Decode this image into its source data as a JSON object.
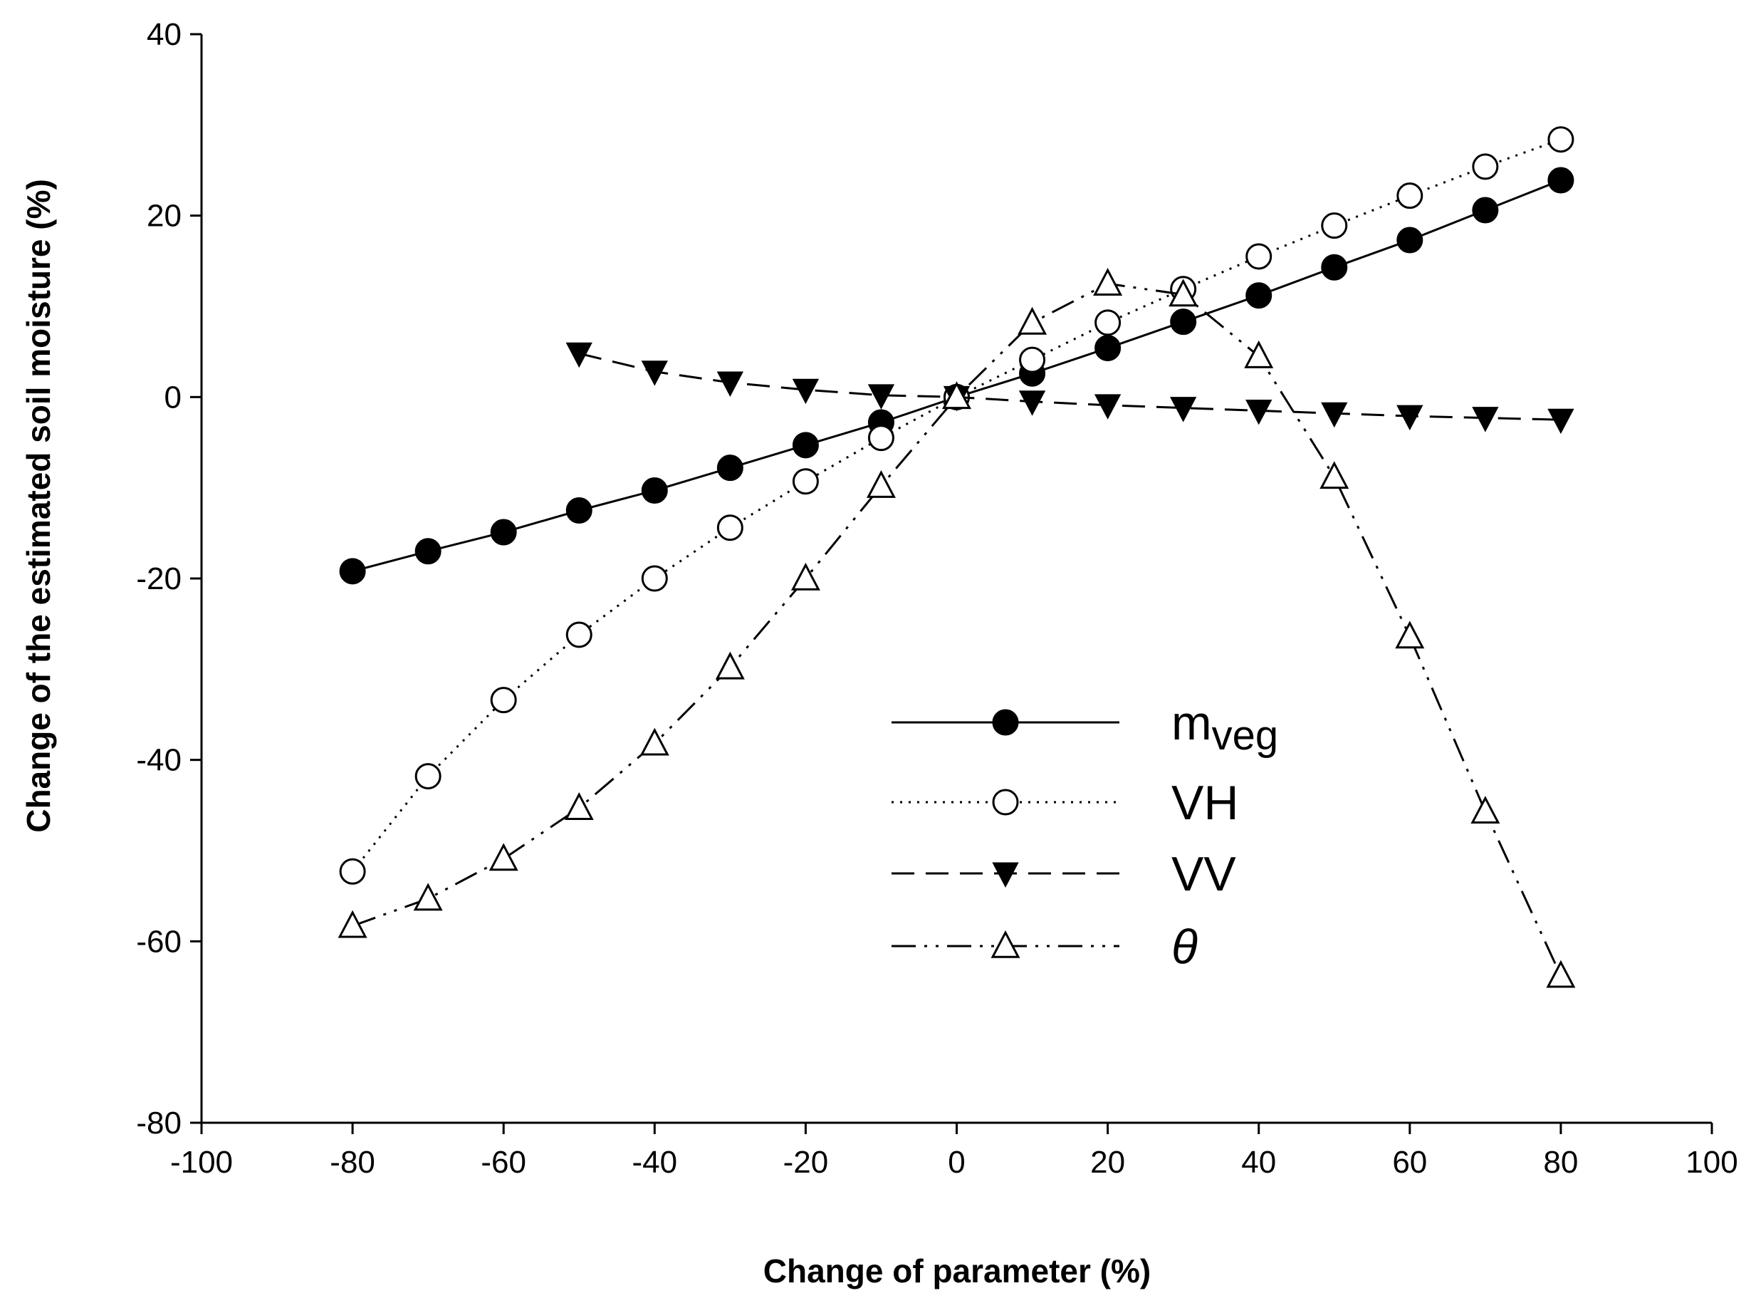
{
  "chart_data": {
    "type": "line",
    "title": "",
    "xlabel": "Change of parameter (%)",
    "ylabel": "Change of the estimated soil moisture (%)",
    "xlim": [
      -100,
      100
    ],
    "ylim": [
      -80,
      40
    ],
    "xticks": [
      -100,
      -80,
      -60,
      -40,
      -20,
      0,
      20,
      40,
      60,
      80,
      100
    ],
    "yticks": [
      -80,
      -60,
      -40,
      -20,
      0,
      20,
      40
    ],
    "grid": false,
    "legend_position": "lower-right",
    "series": [
      {
        "name": "mveg",
        "label_main": "m",
        "label_sub": "veg",
        "marker": "filled-circle",
        "line_style": "solid",
        "x": [
          -80,
          -70,
          -60,
          -50,
          -40,
          -30,
          -20,
          -10,
          0,
          10,
          20,
          30,
          40,
          50,
          60,
          70,
          80
        ],
        "y": [
          -19.2,
          -17,
          -14.9,
          -12.5,
          -10.3,
          -7.8,
          -5.3,
          -2.8,
          0,
          2.6,
          5.4,
          8.3,
          11.2,
          14.3,
          17.3,
          20.6,
          23.9
        ]
      },
      {
        "name": "VH",
        "label_main": "VH",
        "label_sub": "",
        "marker": "open-circle",
        "line_style": "dotted",
        "x": [
          -80,
          -70,
          -60,
          -50,
          -40,
          -30,
          -20,
          -10,
          0,
          10,
          20,
          30,
          40,
          50,
          60,
          70,
          80
        ],
        "y": [
          -52.3,
          -41.8,
          -33.4,
          -26.2,
          -20,
          -14.4,
          -9.3,
          -4.5,
          0,
          4.1,
          8.2,
          11.9,
          15.5,
          18.9,
          22.2,
          25.4,
          28.4
        ]
      },
      {
        "name": "VV",
        "label_main": "VV",
        "label_sub": "",
        "marker": "filled-triangle-down",
        "line_style": "dashed",
        "x": [
          -50,
          -40,
          -30,
          -20,
          -10,
          0,
          10,
          20,
          30,
          40,
          50,
          60,
          70,
          80
        ],
        "y": [
          4.8,
          2.8,
          1.6,
          0.8,
          0.2,
          0,
          -0.5,
          -0.9,
          -1.2,
          -1.5,
          -1.8,
          -2.1,
          -2.3,
          -2.5
        ]
      },
      {
        "name": "θ",
        "label_main": "θ",
        "label_sub": "",
        "marker": "open-triangle-up",
        "line_style": "dash-dot-dot",
        "x": [
          -80,
          -70,
          -60,
          -50,
          -40,
          -30,
          -20,
          -10,
          0,
          10,
          20,
          30,
          40,
          50,
          60,
          70,
          80
        ],
        "y": [
          -58.3,
          -55.3,
          -50.9,
          -45.3,
          -38.2,
          -29.8,
          -20,
          -9.8,
          0,
          8.2,
          12.5,
          11.3,
          4.5,
          -8.8,
          -26.4,
          -45.7,
          -63.8
        ]
      }
    ]
  }
}
